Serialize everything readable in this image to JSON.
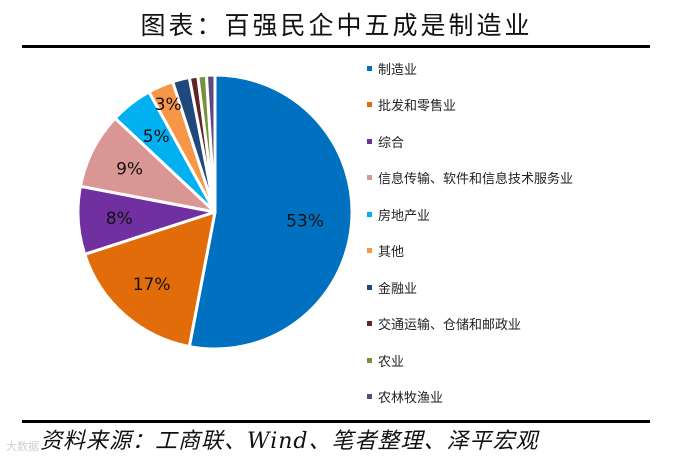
{
  "title": "图表：百强民企中五成是制造业",
  "source": "资料来源：工商联、Wind、笔者整理、泽平宏观",
  "watermark": "大数据",
  "chart_data": {
    "type": "pie",
    "title": "图表：百强民企中五成是制造业",
    "start_angle_deg": 0,
    "direction": "clockwise",
    "legend_position": "right",
    "categories": [
      "制造业",
      "批发和零售业",
      "综合",
      "信息传输、软件和信息技术服务业",
      "房地产业",
      "其他",
      "金融业",
      "交通运输、仓储和邮政业",
      "农业",
      "农林牧渔业"
    ],
    "values": [
      53,
      17,
      8,
      9,
      5,
      3,
      2,
      1,
      1,
      1
    ],
    "data_labels": [
      "53%",
      "17%",
      "8%",
      "9%",
      "5%",
      "3%",
      "",
      "",
      "",
      ""
    ],
    "colors": [
      "#0070C0",
      "#E36C0A",
      "#7030A0",
      "#D99694",
      "#00B0F0",
      "#F79646",
      "#1F497D",
      "#632523",
      "#76923C",
      "#5F497A"
    ]
  },
  "legend": {
    "items": [
      {
        "label": "制造业",
        "color": "#0070C0"
      },
      {
        "label": "批发和零售业",
        "color": "#E36C0A"
      },
      {
        "label": "综合",
        "color": "#7030A0"
      },
      {
        "label": "信息传输、软件和信息技术服务业",
        "color": "#D99694"
      },
      {
        "label": "房地产业",
        "color": "#00B0F0"
      },
      {
        "label": "其他",
        "color": "#F79646"
      },
      {
        "label": "金融业",
        "color": "#1F497D"
      },
      {
        "label": "交通运输、仓储和邮政业",
        "color": "#632523"
      },
      {
        "label": "农业",
        "color": "#76923C"
      },
      {
        "label": "农林牧渔业",
        "color": "#5F497A"
      }
    ]
  }
}
